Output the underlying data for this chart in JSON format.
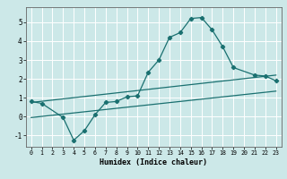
{
  "xlabel": "Humidex (Indice chaleur)",
  "bg_color": "#cce8e8",
  "grid_color": "#ffffff",
  "line_color": "#1a7070",
  "xlim": [
    -0.5,
    23.5
  ],
  "ylim": [
    -1.6,
    5.8
  ],
  "xticks": [
    0,
    1,
    2,
    3,
    4,
    5,
    6,
    7,
    8,
    9,
    10,
    11,
    12,
    13,
    14,
    15,
    16,
    17,
    18,
    19,
    20,
    21,
    22,
    23
  ],
  "yticks": [
    -1,
    0,
    1,
    2,
    3,
    4,
    5
  ],
  "curve_x": [
    0,
    1,
    3,
    4,
    5,
    6,
    7,
    8,
    9,
    10,
    11,
    12,
    13,
    14,
    15,
    16,
    17,
    18,
    19,
    21,
    22,
    23
  ],
  "curve_y": [
    0.8,
    0.7,
    -0.05,
    -1.25,
    -0.75,
    0.1,
    0.75,
    0.8,
    1.05,
    1.1,
    2.35,
    3.0,
    4.2,
    4.45,
    5.2,
    5.25,
    4.6,
    3.7,
    2.6,
    2.2,
    2.15,
    1.9
  ],
  "line2_x": [
    0,
    23
  ],
  "line2_y": [
    0.75,
    2.2
  ],
  "line3_x": [
    0,
    23
  ],
  "line3_y": [
    -0.05,
    1.35
  ]
}
